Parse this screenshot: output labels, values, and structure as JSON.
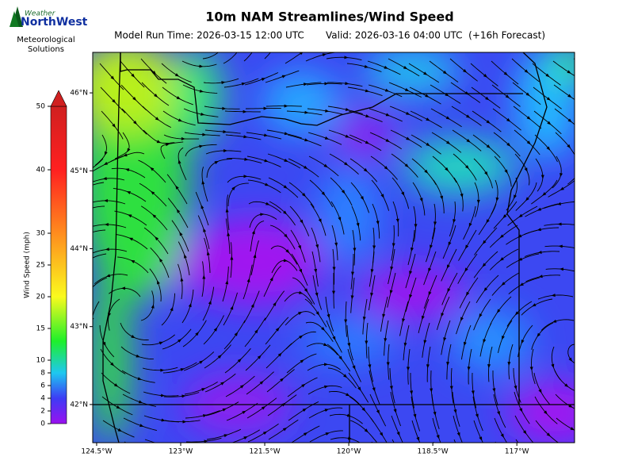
{
  "logo": {
    "brand_top": "Weather",
    "brand_bottom": "NorthWest",
    "line1": "Meteorological",
    "line2": "Solutions"
  },
  "chart_data": {
    "type": "map",
    "title": "10m NAM Streamlines/Wind Speed",
    "subtitle_run": "Model Run Time: 2026-03-15 12:00 UTC",
    "subtitle_valid": "Valid: 2026-03-16 04:00 UTC  (+16h Forecast)",
    "xlim": [
      -124.57,
      -115.97
    ],
    "ylim": [
      41.51,
      46.52
    ],
    "xticks": [
      {
        "value": -124.5,
        "label": "124.5°W"
      },
      {
        "value": -123,
        "label": "123°W"
      },
      {
        "value": -121.5,
        "label": "121.5°W"
      },
      {
        "value": -120,
        "label": "120°W"
      },
      {
        "value": -118.5,
        "label": "118.5°W"
      },
      {
        "value": -117,
        "label": "117°W"
      }
    ],
    "yticks": [
      {
        "value": 42,
        "label": "42°N"
      },
      {
        "value": 43,
        "label": "43°N"
      },
      {
        "value": 44,
        "label": "44°N"
      },
      {
        "value": 45,
        "label": "45°N"
      },
      {
        "value": 46,
        "label": "46°N"
      }
    ],
    "colorbar": {
      "label": "Wind Speed (mph)",
      "lim": [
        0,
        50
      ],
      "ticks": [
        0,
        2,
        4,
        6,
        8,
        10,
        15,
        20,
        25,
        30,
        40,
        50
      ]
    }
  }
}
